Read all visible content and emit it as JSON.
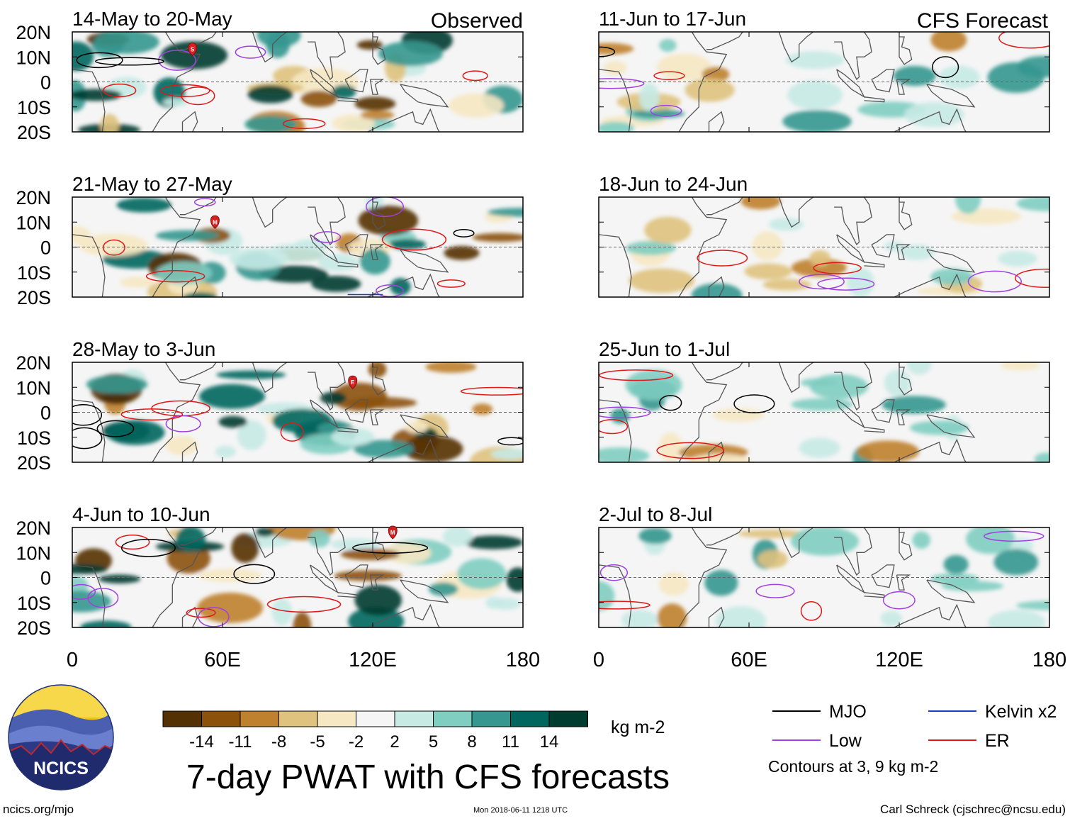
{
  "chart_data": {
    "type": "heatmap",
    "title": "7-day PWAT with CFS forecasts",
    "units": "kg m-2",
    "headers": {
      "observed": "Observed",
      "forecast": "CFS Forecast"
    },
    "x_ticks": [
      "0",
      "60E",
      "120E",
      "180"
    ],
    "y_ticks": [
      "20N",
      "10N",
      "0",
      "10S",
      "20S"
    ],
    "xlim": [
      0,
      180
    ],
    "ylim": [
      -20,
      20
    ],
    "observed_panels": [
      "14-May to 20-May",
      "21-May to 27-May",
      "28-May to 3-Jun",
      "4-Jun to 10-Jun"
    ],
    "forecast_panels": [
      "11-Jun to 17-Jun",
      "18-Jun to 24-Jun",
      "25-Jun to 1-Jul",
      "2-Jul to 8-Jul"
    ],
    "colorbar": {
      "labels": [
        "-14",
        "-11",
        "-8",
        "-5",
        "-2",
        "2",
        "5",
        "8",
        "11",
        "14"
      ],
      "colors": [
        "#543005",
        "#8c510a",
        "#bf812d",
        "#dfc27d",
        "#f6e8c3",
        "#f5f5f5",
        "#c7eae5",
        "#80cdc1",
        "#35978f",
        "#01665e",
        "#003c30"
      ]
    },
    "legend": [
      {
        "label": "MJO",
        "color": "#000000"
      },
      {
        "label": "Kelvin x2",
        "color": "#1a3cc8"
      },
      {
        "label": "Low",
        "color": "#a040e0"
      },
      {
        "label": "ER",
        "color": "#e01818"
      }
    ],
    "contour_note": "Contours at 3, 9 kg m-2",
    "markers": [
      {
        "panel": "observed-1",
        "letter": "S",
        "lon": 48,
        "lat": 13
      },
      {
        "panel": "observed-2",
        "letter": "M",
        "lon": 57,
        "lat": 10
      },
      {
        "panel": "observed-3",
        "letter": "E",
        "lon": 112,
        "lat": 12
      },
      {
        "panel": "observed-4",
        "letter": "M",
        "lon": 128,
        "lat": 18
      }
    ]
  },
  "logo": {
    "text": "NCICS"
  },
  "footer": {
    "left": "ncics.org/mjo",
    "center": "Mon 2018-06-11 1218 UTC",
    "right": "Carl Schreck (cjschrec@ncsu.edu)"
  }
}
